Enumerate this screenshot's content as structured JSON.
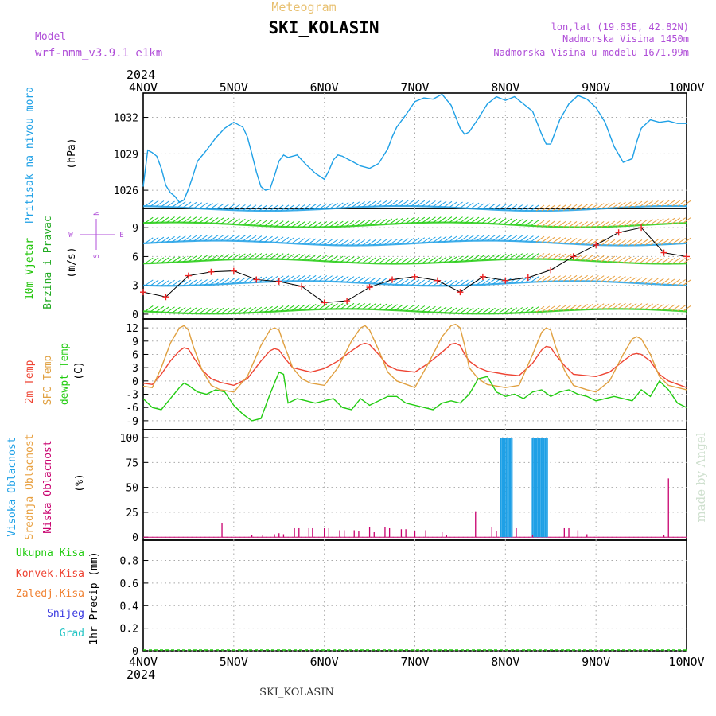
{
  "header": {
    "subtitle": "Meteogram",
    "title": "SKI_KOLASIN",
    "model_label": "Model",
    "model_name": "wrf-nmm_v3.9.1 e1km",
    "location": "lon,lat (19.63E, 42.82N)",
    "elevation": "Nadmorska Visina 1450m",
    "model_elevation": "Nadmorska Visina u modelu 1671.99m",
    "year": "2024"
  },
  "footer": {
    "station": "SKI_KOLASIN",
    "credit": "made by Angel"
  },
  "colors": {
    "pressure": "#1ea0e6",
    "wind_label": "#22c40a",
    "wind_label2": "#22aa22",
    "purple": "#b04fd8",
    "temp2m": "#ee4433",
    "sfc": "#e0a040",
    "dewpt": "#22cc11",
    "high_cloud": "#1ea0e6",
    "mid_cloud": "#e8a040",
    "low_cloud": "#c8006e",
    "total_precip": "#22cc11",
    "conv_precip": "#ee4433",
    "frozen": "#f08030",
    "snow": "#3838e0",
    "grad": "#22c4c4"
  },
  "x_axis": {
    "ticks": [
      "4NOV",
      "5NOV",
      "6NOV",
      "7NOV",
      "8NOV",
      "9NOV",
      "10NOV"
    ],
    "range_days": [
      0,
      6
    ]
  },
  "chart_data": [
    {
      "type": "line",
      "ylabel": "Pritisak na nivou mora",
      "units": "(hPa)",
      "y_ticks": [
        1026,
        1029,
        1032
      ],
      "ylim": [
        1024.5,
        1034
      ],
      "grid": true,
      "series": [
        {
          "key": "pressure",
          "x": [
            0,
            0.05,
            0.1,
            0.15,
            0.2,
            0.25,
            0.3,
            0.35,
            0.4,
            0.45,
            0.5,
            0.55,
            0.6,
            0.7,
            0.8,
            0.9,
            1.0,
            1.05,
            1.1,
            1.15,
            1.2,
            1.25,
            1.3,
            1.35,
            1.4,
            1.45,
            1.5,
            1.55,
            1.6,
            1.7,
            1.8,
            1.9,
            2.0,
            2.05,
            2.1,
            2.15,
            2.2,
            2.3,
            2.4,
            2.5,
            2.6,
            2.7,
            2.75,
            2.8,
            2.9,
            3.0,
            3.1,
            3.2,
            3.3,
            3.4,
            3.5,
            3.55,
            3.6,
            3.7,
            3.8,
            3.9,
            4.0,
            4.1,
            4.2,
            4.3,
            4.4,
            4.45,
            4.5,
            4.6,
            4.7,
            4.8,
            4.9,
            5.0,
            5.1,
            5.2,
            5.3,
            5.4,
            5.45,
            5.5,
            5.6,
            5.7,
            5.8,
            5.9,
            6.0
          ],
          "values": [
            1026.3,
            1029.3,
            1029.1,
            1028.8,
            1027.8,
            1026.4,
            1025.8,
            1025.5,
            1025.0,
            1025.2,
            1026.1,
            1027.2,
            1028.4,
            1029.3,
            1030.3,
            1031.1,
            1031.6,
            1031.4,
            1031.2,
            1030.4,
            1029.0,
            1027.5,
            1026.3,
            1026.0,
            1026.1,
            1027.2,
            1028.4,
            1028.9,
            1028.7,
            1028.9,
            1028.1,
            1027.4,
            1026.9,
            1027.6,
            1028.5,
            1028.9,
            1028.8,
            1028.4,
            1028.0,
            1027.8,
            1028.2,
            1029.4,
            1030.4,
            1031.2,
            1032.2,
            1033.3,
            1033.6,
            1033.5,
            1033.9,
            1033.0,
            1031.1,
            1030.6,
            1030.8,
            1031.9,
            1033.1,
            1033.7,
            1033.4,
            1033.7,
            1033.1,
            1032.5,
            1030.6,
            1029.8,
            1029.8,
            1031.8,
            1033.1,
            1033.8,
            1033.5,
            1032.8,
            1031.6,
            1029.6,
            1028.3,
            1028.6,
            1030.0,
            1031.1,
            1031.8,
            1031.6,
            1031.7,
            1031.5,
            1031.5
          ]
        }
      ]
    },
    {
      "type": "scatter",
      "ylabel": "10m Vjetar Brzina i Pravac",
      "units": "(m/s)",
      "y_ticks": [
        0,
        3,
        6,
        9
      ],
      "ylim": [
        -0.5,
        11
      ],
      "grid": true,
      "compass": {
        "n": "N",
        "e": "E",
        "s": "S",
        "w": "W"
      },
      "series": [
        {
          "key": "wind_speed",
          "x": [
            0,
            0.25,
            0.5,
            0.75,
            1.0,
            1.25,
            1.5,
            1.75,
            2.0,
            2.25,
            2.5,
            2.75,
            3.0,
            3.25,
            3.5,
            3.75,
            4.0,
            4.25,
            4.5,
            4.75,
            5.0,
            5.25,
            5.5,
            5.75,
            6.0
          ],
          "values": [
            2.3,
            1.8,
            4.0,
            4.4,
            4.5,
            3.6,
            3.4,
            2.9,
            1.2,
            1.4,
            2.8,
            3.6,
            3.9,
            3.5,
            2.3,
            3.9,
            3.5,
            3.8,
            4.6,
            6.0,
            7.2,
            8.5,
            9.0,
            6.4,
            6.0
          ]
        }
      ]
    },
    {
      "type": "line",
      "ylabel": "2m Temp / SFC Temp / dewpt Temp",
      "units": "(C)",
      "y_ticks": [
        -9,
        -6,
        -3,
        0,
        3,
        6,
        9,
        12
      ],
      "ylim": [
        -11,
        14
      ],
      "grid": true,
      "series": [
        {
          "key": "t2m",
          "name": "2m Temp",
          "x": [
            0,
            0.1,
            0.2,
            0.3,
            0.4,
            0.45,
            0.5,
            0.55,
            0.65,
            0.75,
            0.85,
            1.0,
            1.15,
            1.3,
            1.4,
            1.45,
            1.5,
            1.55,
            1.65,
            1.75,
            1.85,
            2.0,
            2.15,
            2.3,
            2.4,
            2.45,
            2.5,
            2.6,
            2.7,
            2.8,
            3.0,
            3.15,
            3.3,
            3.4,
            3.45,
            3.5,
            3.55,
            3.6,
            3.7,
            3.8,
            4.0,
            4.15,
            4.3,
            4.4,
            4.45,
            4.5,
            4.55,
            4.65,
            4.75,
            4.9,
            5.0,
            5.15,
            5.3,
            5.4,
            5.45,
            5.5,
            5.6,
            5.7,
            5.8,
            6.0
          ],
          "values": [
            -0.5,
            -0.8,
            1.5,
            4.5,
            6.8,
            7.5,
            7.2,
            5.5,
            2.5,
            0.5,
            -0.3,
            -1.0,
            0.5,
            4.5,
            6.8,
            7.3,
            7.0,
            5.5,
            3.0,
            2.5,
            2.0,
            2.8,
            4.5,
            6.8,
            8.2,
            8.5,
            8.2,
            6.0,
            3.5,
            2.5,
            2.0,
            4.0,
            6.5,
            8.3,
            8.5,
            8.0,
            6.0,
            4.5,
            3.0,
            2.2,
            1.5,
            1.2,
            4.0,
            7.0,
            7.8,
            7.6,
            6.0,
            3.5,
            1.5,
            1.2,
            1.0,
            2.0,
            4.5,
            6.0,
            6.2,
            6.0,
            4.5,
            1.5,
            0.0,
            -1.5
          ]
        },
        {
          "key": "sfc",
          "name": "SFC Temp",
          "x": [
            0,
            0.1,
            0.2,
            0.3,
            0.4,
            0.45,
            0.5,
            0.55,
            0.65,
            0.75,
            0.85,
            1.0,
            1.15,
            1.3,
            1.4,
            1.45,
            1.5,
            1.55,
            1.65,
            1.75,
            1.85,
            2.0,
            2.15,
            2.3,
            2.4,
            2.45,
            2.5,
            2.6,
            2.7,
            2.8,
            3.0,
            3.15,
            3.3,
            3.4,
            3.45,
            3.5,
            3.55,
            3.6,
            3.7,
            3.8,
            4.0,
            4.15,
            4.3,
            4.4,
            4.45,
            4.5,
            4.55,
            4.65,
            4.75,
            4.9,
            5.0,
            5.15,
            5.3,
            5.4,
            5.45,
            5.5,
            5.6,
            5.7,
            5.8,
            6.0
          ],
          "values": [
            -1.2,
            -1.5,
            3.0,
            8.5,
            12.0,
            12.5,
            11.5,
            8.0,
            2.5,
            -1.0,
            -2.0,
            -2.5,
            1.0,
            8.0,
            11.5,
            12.0,
            11.5,
            8.5,
            3.0,
            0.5,
            -0.5,
            -1.0,
            3.0,
            9.0,
            12.0,
            12.5,
            11.5,
            7.0,
            2.0,
            0.0,
            -1.5,
            4.0,
            10.0,
            12.5,
            12.8,
            12.0,
            8.0,
            3.0,
            0.5,
            -0.8,
            -1.5,
            -1.0,
            6.0,
            11.0,
            12.0,
            11.5,
            8.0,
            2.5,
            -1.0,
            -2.0,
            -2.5,
            0.0,
            6.0,
            9.5,
            10.0,
            9.5,
            6.0,
            1.0,
            -1.0,
            -2.0
          ]
        },
        {
          "key": "dewpt",
          "name": "dewpt Temp",
          "x": [
            0,
            0.1,
            0.2,
            0.3,
            0.4,
            0.45,
            0.5,
            0.6,
            0.7,
            0.8,
            0.9,
            1.0,
            1.1,
            1.2,
            1.3,
            1.4,
            1.5,
            1.55,
            1.6,
            1.7,
            1.8,
            1.9,
            2.0,
            2.1,
            2.2,
            2.3,
            2.4,
            2.5,
            2.6,
            2.7,
            2.8,
            2.9,
            3.0,
            3.1,
            3.2,
            3.3,
            3.4,
            3.5,
            3.6,
            3.7,
            3.8,
            3.9,
            4.0,
            4.1,
            4.2,
            4.3,
            4.4,
            4.5,
            4.6,
            4.7,
            4.8,
            4.9,
            5.0,
            5.1,
            5.2,
            5.3,
            5.4,
            5.5,
            5.6,
            5.7,
            5.8,
            5.9,
            6.0
          ],
          "values": [
            -4.0,
            -6.0,
            -6.5,
            -4.0,
            -1.5,
            -0.5,
            -1.0,
            -2.5,
            -3.0,
            -2.0,
            -2.5,
            -5.5,
            -7.5,
            -9.0,
            -8.5,
            -3.0,
            2.0,
            1.5,
            -5.0,
            -4.0,
            -4.5,
            -5.0,
            -4.5,
            -4.0,
            -6.0,
            -6.5,
            -4.0,
            -5.5,
            -4.5,
            -3.5,
            -3.5,
            -5.0,
            -5.5,
            -6.0,
            -6.5,
            -5.0,
            -4.5,
            -5.0,
            -3.0,
            0.5,
            1.0,
            -2.5,
            -3.5,
            -3.0,
            -4.0,
            -2.5,
            -2.0,
            -3.5,
            -2.5,
            -2.0,
            -3.0,
            -3.5,
            -4.5,
            -4.0,
            -3.5,
            -4.0,
            -4.5,
            -2.0,
            -3.5,
            0.0,
            -2.0,
            -5.0,
            -6.0
          ]
        }
      ]
    },
    {
      "type": "bar",
      "ylabel": "Visoka Oblacnost / Srednja Oblacnost / Niska Oblacnost",
      "units": "(%)",
      "y_ticks": [
        0,
        25,
        50,
        75,
        100
      ],
      "ylim": [
        -3,
        108
      ],
      "grid": true,
      "series": [
        {
          "key": "high_cloud",
          "name": "Visoka Oblacnost",
          "x": [
            3.95,
            3.97,
            3.99,
            4.01,
            4.03,
            4.05,
            4.07,
            4.3,
            4.32,
            4.34,
            4.36,
            4.38,
            4.4,
            4.42,
            4.44,
            4.46
          ],
          "values": [
            100,
            100,
            100,
            100,
            100,
            100,
            100,
            100,
            100,
            100,
            100,
            100,
            100,
            100,
            100,
            100
          ]
        },
        {
          "key": "low_cloud",
          "name": "Niska Oblacnost",
          "x": [
            0.87,
            1.2,
            1.32,
            1.45,
            1.5,
            1.55,
            1.67,
            1.72,
            1.83,
            1.87,
            2.0,
            2.05,
            2.17,
            2.22,
            2.33,
            2.38,
            2.5,
            2.55,
            2.67,
            2.72,
            2.85,
            2.9,
            3.0,
            3.12,
            3.3,
            3.35,
            3.67,
            3.85,
            3.9,
            4.12,
            4.3,
            4.65,
            4.7,
            4.8,
            4.9,
            5.75,
            5.8
          ],
          "values": [
            14,
            2,
            2,
            3,
            4,
            3,
            9,
            9,
            9,
            9,
            9,
            9,
            7,
            7,
            7,
            6,
            10,
            5,
            10,
            9,
            8,
            8,
            6,
            7,
            5,
            2,
            26,
            10,
            6,
            9,
            2,
            9,
            9,
            7,
            3,
            2,
            59
          ]
        }
      ]
    },
    {
      "type": "bar",
      "ylabel": "1hr Precip",
      "units": "(mm)",
      "y_ticks": [
        0,
        0.2,
        0.4,
        0.6,
        0.8
      ],
      "ylim": [
        0,
        0.98
      ],
      "grid": true,
      "legend": {
        "total": "Ukupna Kisa",
        "conv": "Konvek.Kisa",
        "frozen": "Zaledj.Kisa",
        "snow": "Snijeg",
        "grad": "Grad"
      },
      "series": []
    }
  ]
}
